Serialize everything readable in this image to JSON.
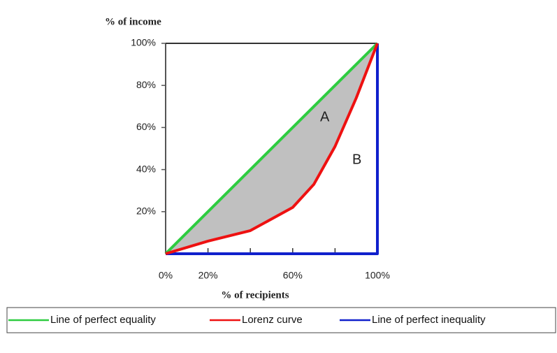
{
  "chart_data": {
    "type": "line",
    "ylabel": "% of income",
    "xlabel": "% of recipients",
    "xlim": [
      0,
      100
    ],
    "ylim": [
      0,
      100
    ],
    "xticks": [
      {
        "value": 0,
        "label": "0%"
      },
      {
        "value": 20,
        "label": "20%"
      },
      {
        "value": 60,
        "label": "60%"
      },
      {
        "value": 100,
        "label": "100%"
      }
    ],
    "xtick_marks": [
      20,
      40,
      60,
      80
    ],
    "yticks": [
      {
        "value": 20,
        "label": "20%"
      },
      {
        "value": 40,
        "label": "40%"
      },
      {
        "value": 60,
        "label": "60%"
      },
      {
        "value": 80,
        "label": "80%"
      },
      {
        "value": 100,
        "label": "100%"
      }
    ],
    "shade_color": "#c0c0c0",
    "annotations": [
      "A",
      "B"
    ],
    "series": [
      {
        "name": "Line of perfect equality",
        "color": "#2ecc40",
        "x": [
          0,
          100
        ],
        "values": [
          0,
          100
        ]
      },
      {
        "name": "Lorenz curve",
        "color": "#ee1111",
        "x": [
          0,
          20,
          40,
          60,
          70,
          80,
          90,
          100
        ],
        "values": [
          0,
          6,
          11,
          22,
          33,
          51,
          74,
          100
        ]
      },
      {
        "name": "Line of perfect inequality",
        "color": "#1020cc",
        "x": [
          0,
          100,
          100
        ],
        "values": [
          0,
          0,
          100
        ]
      }
    ]
  }
}
